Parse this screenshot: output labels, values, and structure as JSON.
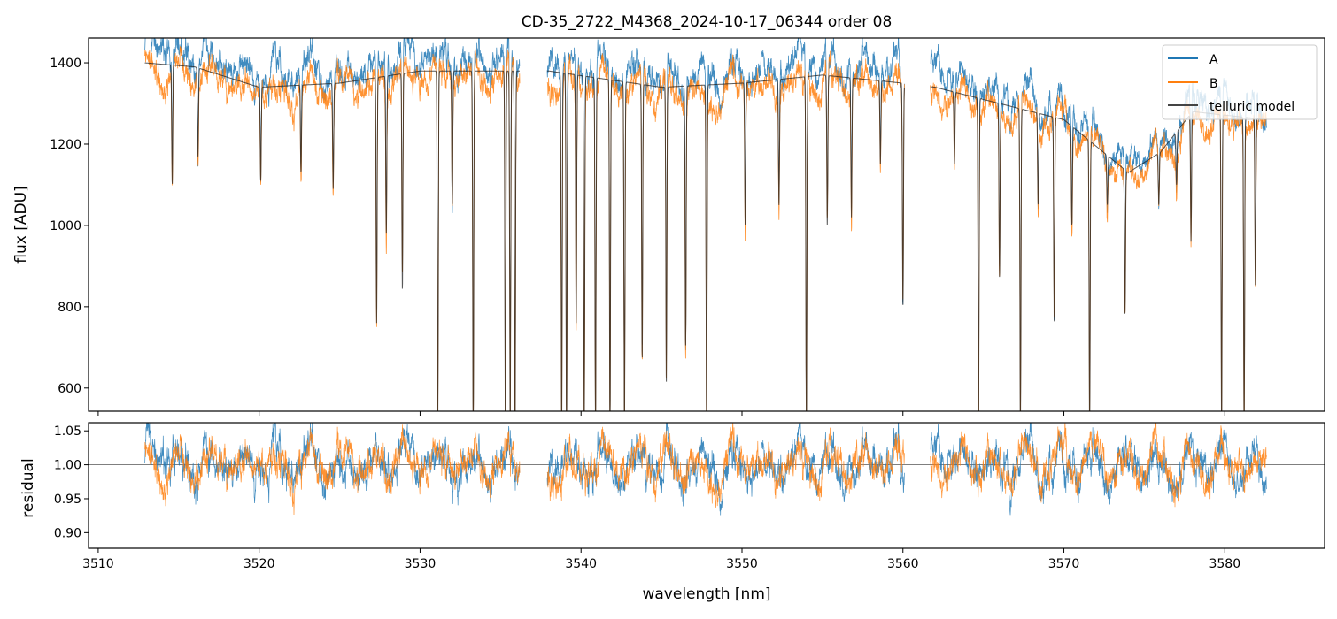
{
  "chart_data": {
    "type": "line",
    "title": "CD-35_2722_M4368_2024-10-17_06344  order 08",
    "xlabel": "wavelength [nm]",
    "xlim": [
      3509.4,
      3586.2
    ],
    "xticks": [
      3510,
      3520,
      3530,
      3540,
      3550,
      3560,
      3570,
      3580
    ],
    "legend": {
      "placement": "top-right",
      "entries": [
        "A",
        "B",
        "telluric model"
      ]
    },
    "colors": {
      "A": "#1f77b4",
      "B": "#ff7f0e",
      "telluric model": "#333333"
    },
    "panels": [
      {
        "name": "flux",
        "ylabel": "flux [ADU]",
        "ylim": [
          543,
          1461
        ],
        "yticks": [
          600,
          800,
          1000,
          1200,
          1400
        ]
      },
      {
        "name": "residual",
        "ylabel": "residual",
        "ylim": [
          0.877,
          1.062
        ],
        "yticks": [
          0.9,
          0.95,
          1.0,
          1.05
        ],
        "reference_line": 1.0
      }
    ],
    "data_segments_nm": [
      [
        3512.9,
        3536.2
      ],
      [
        3537.9,
        3560.1
      ],
      [
        3561.7,
        3582.6
      ]
    ],
    "continuum_nm_flux": [
      [
        3512.9,
        1400
      ],
      [
        3516,
        1390
      ],
      [
        3520,
        1340
      ],
      [
        3525,
        1350
      ],
      [
        3530,
        1380
      ],
      [
        3536,
        1380
      ],
      [
        3538,
        1380
      ],
      [
        3545,
        1340
      ],
      [
        3550,
        1350
      ],
      [
        3555,
        1370
      ],
      [
        3560,
        1350
      ],
      [
        3562,
        1340
      ],
      [
        3566,
        1300
      ],
      [
        3570,
        1260
      ],
      [
        3574,
        1130
      ],
      [
        3576,
        1180
      ],
      [
        3578,
        1280
      ],
      [
        3582.6,
        1260
      ]
    ],
    "absorption_lines_nm_minflux": [
      [
        3514.6,
        1100
      ],
      [
        3516.2,
        1170
      ],
      [
        3520.1,
        1110
      ],
      [
        3522.6,
        1130
      ],
      [
        3524.6,
        1090
      ],
      [
        3527.3,
        760
      ],
      [
        3527.9,
        980
      ],
      [
        3528.9,
        840
      ],
      [
        3531.1,
        500
      ],
      [
        3532.0,
        1050
      ],
      [
        3533.3,
        500
      ],
      [
        3535.3,
        500
      ],
      [
        3535.6,
        500
      ],
      [
        3535.9,
        500
      ],
      [
        3538.8,
        500
      ],
      [
        3539.1,
        500
      ],
      [
        3539.7,
        760
      ],
      [
        3540.2,
        500
      ],
      [
        3540.9,
        500
      ],
      [
        3541.8,
        500
      ],
      [
        3542.7,
        500
      ],
      [
        3543.8,
        670
      ],
      [
        3545.3,
        610
      ],
      [
        3546.5,
        700
      ],
      [
        3547.8,
        500
      ],
      [
        3550.2,
        1000
      ],
      [
        3552.3,
        1050
      ],
      [
        3554.0,
        500
      ],
      [
        3555.3,
        1000
      ],
      [
        3556.8,
        1020
      ],
      [
        3558.6,
        1150
      ],
      [
        3560.0,
        800
      ],
      [
        3563.2,
        1150
      ],
      [
        3564.7,
        500
      ],
      [
        3566.0,
        870
      ],
      [
        3567.3,
        500
      ],
      [
        3568.4,
        1050
      ],
      [
        3569.4,
        760
      ],
      [
        3570.5,
        1000
      ],
      [
        3571.6,
        500
      ],
      [
        3572.7,
        1050
      ],
      [
        3573.8,
        780
      ],
      [
        3575.9,
        1050
      ],
      [
        3577.0,
        1100
      ],
      [
        3577.9,
        960
      ],
      [
        3579.8,
        500
      ],
      [
        3581.2,
        500
      ],
      [
        3581.9,
        850
      ]
    ]
  }
}
